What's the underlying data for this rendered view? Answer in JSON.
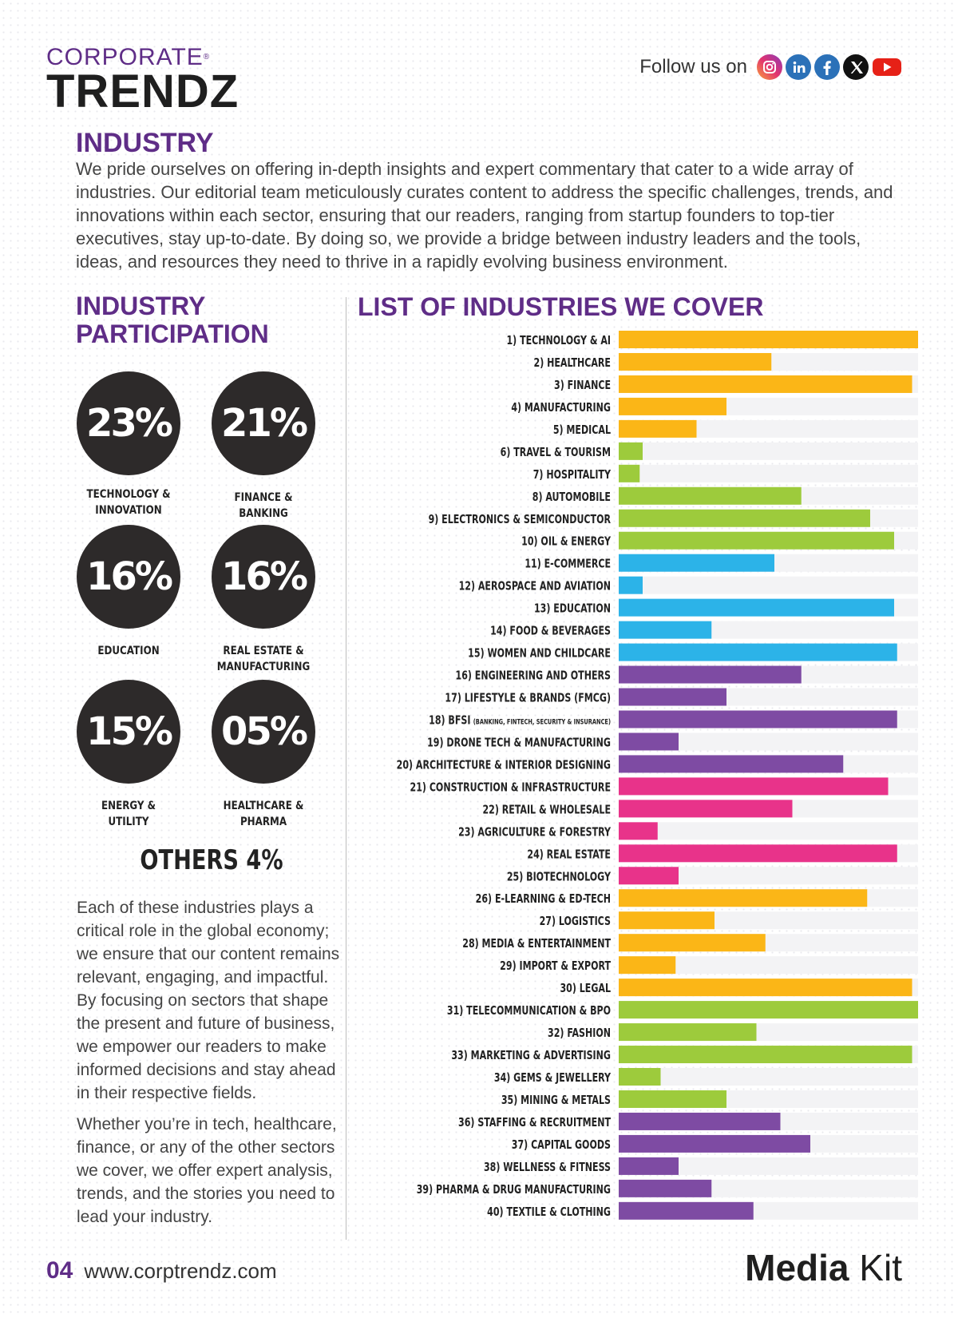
{
  "header": {
    "logo_top": "CORPORATE",
    "logo_reg": "®",
    "logo_bottom": "TRENDZ",
    "follow_label": "Follow us on",
    "social_icons": [
      "instagram-icon",
      "linkedin-icon",
      "facebook-icon",
      "x-icon",
      "youtube-icon"
    ]
  },
  "intro": {
    "heading": "INDUSTRY",
    "body": "We pride ourselves on offering in-depth insights and expert commentary that cater to a wide array of industries. Our editorial team meticulously curates content to address the specific challenges, trends, and innovations within each sector, ensuring that our readers, ranging from startup founders to top-tier executives, stay up-to-date. By doing so, we provide a bridge between industry leaders and the tools, ideas, and resources they need to thrive in a rapidly evolving business environment."
  },
  "participation": {
    "heading": "INDUSTRY PARTICIPATION",
    "stats": [
      {
        "value": "23%",
        "label_1": "TECHNOLOGY &",
        "label_2": "INNOVATION"
      },
      {
        "value": "21%",
        "label_1": "FINANCE &",
        "label_2": "BANKING"
      },
      {
        "value": "16%",
        "label_1": "EDUCATION",
        "label_2": ""
      },
      {
        "value": "16%",
        "label_1": "REAL ESTATE &",
        "label_2": "MANUFACTURING"
      },
      {
        "value": "15%",
        "label_1": "ENERGY &",
        "label_2": "UTILITY"
      },
      {
        "value": "05%",
        "label_1": "HEALTHCARE &",
        "label_2": "PHARMA"
      }
    ],
    "others": "OTHERS 4%",
    "body_1": "Each of these industries plays a critical role in the global economy; we ensure that our content remains relevant, engaging, and impactful. By focusing on sectors that shape the present and future of business, we empower our readers to make informed decisions and stay ahead in their respective fields.",
    "body_2": "Whether you’re in tech, healthcare, finance, or any of the other sectors we cover, we offer expert analysis, trends, and the stories you need to lead your industry."
  },
  "colors": {
    "purple_heading": "#5f2d87",
    "orange": "#fbb617",
    "green": "#9dcb3c",
    "blue": "#2cb3e8",
    "purple": "#7e4ba3",
    "pink": "#e8338a"
  },
  "chart_data": {
    "type": "bar",
    "orientation": "horizontal",
    "title": "LIST OF INDUSTRIES WE COVER",
    "xlim": [
      0,
      100
    ],
    "categories": [
      {
        "label": "1) TECHNOLOGY & AI",
        "sub": "",
        "value": 100,
        "color": "#fbb617"
      },
      {
        "label": "2) HEALTHCARE",
        "sub": "",
        "value": 51,
        "color": "#fbb617"
      },
      {
        "label": "3) FINANCE",
        "sub": "",
        "value": 98,
        "color": "#fbb617"
      },
      {
        "label": "4) MANUFACTURING",
        "sub": "",
        "value": 36,
        "color": "#fbb617"
      },
      {
        "label": "5) MEDICAL",
        "sub": "",
        "value": 26,
        "color": "#fbb617"
      },
      {
        "label": "6) TRAVEL & TOURISM",
        "sub": "",
        "value": 8,
        "color": "#9dcb3c"
      },
      {
        "label": "7) HOSPITALITY",
        "sub": "",
        "value": 7,
        "color": "#9dcb3c"
      },
      {
        "label": "8) AUTOMOBILE",
        "sub": "",
        "value": 61,
        "color": "#9dcb3c"
      },
      {
        "label": "9) ELECTRONICS & SEMICONDUCTOR",
        "sub": "",
        "value": 84,
        "color": "#9dcb3c"
      },
      {
        "label": "10) OIL & ENERGY",
        "sub": "",
        "value": 92,
        "color": "#9dcb3c"
      },
      {
        "label": "11) E-COMMERCE",
        "sub": "",
        "value": 52,
        "color": "#2cb3e8"
      },
      {
        "label": "12) AEROSPACE AND AVIATION",
        "sub": "",
        "value": 8,
        "color": "#2cb3e8"
      },
      {
        "label": "13) EDUCATION",
        "sub": "",
        "value": 92,
        "color": "#2cb3e8"
      },
      {
        "label": "14) FOOD & BEVERAGES",
        "sub": "",
        "value": 31,
        "color": "#2cb3e8"
      },
      {
        "label": "15) WOMEN AND CHILDCARE",
        "sub": "",
        "value": 93,
        "color": "#2cb3e8"
      },
      {
        "label": "16) ENGINEERING AND OTHERS",
        "sub": "",
        "value": 61,
        "color": "#7e4ba3"
      },
      {
        "label": "17) LIFESTYLE & BRANDS (FMCG)",
        "sub": "",
        "value": 36,
        "color": "#7e4ba3"
      },
      {
        "label": "18) BFSI",
        "sub": "(BANKING, FINTECH, SECURITY & INSURANCE)",
        "value": 93,
        "color": "#7e4ba3"
      },
      {
        "label": "19) DRONE TECH & MANUFACTURING",
        "sub": "",
        "value": 20,
        "color": "#7e4ba3"
      },
      {
        "label": "20) ARCHITECTURE & INTERIOR DESIGNING",
        "sub": "",
        "value": 75,
        "color": "#7e4ba3"
      },
      {
        "label": "21) CONSTRUCTION & INFRASTRUCTURE",
        "sub": "",
        "value": 90,
        "color": "#e8338a"
      },
      {
        "label": "22) RETAIL & WHOLESALE",
        "sub": "",
        "value": 58,
        "color": "#e8338a"
      },
      {
        "label": "23) AGRICULTURE & FORESTRY",
        "sub": "",
        "value": 13,
        "color": "#e8338a"
      },
      {
        "label": "24) REAL ESTATE",
        "sub": "",
        "value": 93,
        "color": "#e8338a"
      },
      {
        "label": "25) BIOTECHNOLOGY",
        "sub": "",
        "value": 20,
        "color": "#e8338a"
      },
      {
        "label": "26) E-LEARNING & ED-TECH",
        "sub": "",
        "value": 83,
        "color": "#fbb617"
      },
      {
        "label": "27) LOGISTICS",
        "sub": "",
        "value": 32,
        "color": "#fbb617"
      },
      {
        "label": "28) MEDIA & ENTERTAINMENT",
        "sub": "",
        "value": 49,
        "color": "#fbb617"
      },
      {
        "label": "29) IMPORT & EXPORT",
        "sub": "",
        "value": 19,
        "color": "#fbb617"
      },
      {
        "label": "30) LEGAL",
        "sub": "",
        "value": 98,
        "color": "#fbb617"
      },
      {
        "label": "31) TELECOMMUNICATION & BPO",
        "sub": "",
        "value": 100,
        "color": "#9dcb3c"
      },
      {
        "label": "32) FASHION",
        "sub": "",
        "value": 46,
        "color": "#9dcb3c"
      },
      {
        "label": "33) MARKETING & ADVERTISING",
        "sub": "",
        "value": 98,
        "color": "#9dcb3c"
      },
      {
        "label": "34) GEMS & JEWELLERY",
        "sub": "",
        "value": 14,
        "color": "#9dcb3c"
      },
      {
        "label": "35) MINING & METALS",
        "sub": "",
        "value": 36,
        "color": "#9dcb3c"
      },
      {
        "label": "36) STAFFING & RECRUITMENT",
        "sub": "",
        "value": 54,
        "color": "#7e4ba3"
      },
      {
        "label": "37) CAPITAL GOODS",
        "sub": "",
        "value": 64,
        "color": "#7e4ba3"
      },
      {
        "label": "38) WELLNESS & FITNESS",
        "sub": "",
        "value": 20,
        "color": "#7e4ba3"
      },
      {
        "label": "39) PHARMA & DRUG MANUFACTURING",
        "sub": "",
        "value": 31,
        "color": "#7e4ba3"
      },
      {
        "label": "40) TEXTILE & CLOTHING",
        "sub": "",
        "value": 45,
        "color": "#7e4ba3"
      }
    ]
  },
  "footer": {
    "page_number": "04",
    "url": "www.corptrendz.com",
    "mediakit_bold": "Media",
    "mediakit_light": " Kit"
  }
}
